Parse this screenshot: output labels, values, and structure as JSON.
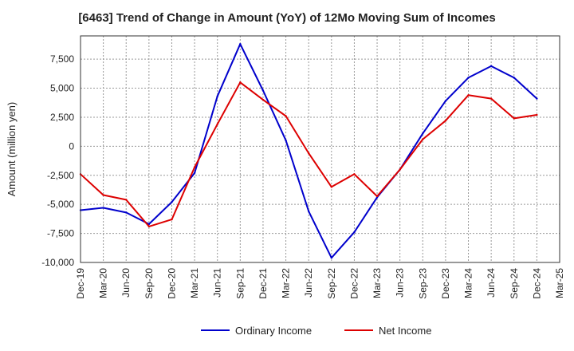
{
  "chart_data": {
    "type": "line",
    "title": "[6463]  Trend of Change in Amount (YoY) of 12Mo Moving Sum of Incomes",
    "xlabel": "",
    "ylabel": "Amount (million yen)",
    "ylim": [
      -10000,
      9500
    ],
    "yticks": [
      7500,
      5000,
      2500,
      0,
      -2500,
      -5000,
      -7500,
      -10000
    ],
    "ytick_labels": [
      "7,500",
      "5,000",
      "2,500",
      "0",
      "-2,500",
      "-5,000",
      "-7,500",
      "-10,000"
    ],
    "categories": [
      "Dec-19",
      "Mar-20",
      "Jun-20",
      "Sep-20",
      "Dec-20",
      "Mar-21",
      "Jun-21",
      "Sep-21",
      "Dec-21",
      "Mar-22",
      "Jun-22",
      "Sep-22",
      "Dec-22",
      "Mar-23",
      "Jun-23",
      "Sep-23",
      "Dec-23",
      "Mar-24",
      "Jun-24",
      "Sep-24",
      "Dec-24",
      "Mar-25"
    ],
    "grid": true,
    "legend_position": "bottom",
    "series": [
      {
        "name": "Ordinary Income",
        "color": "#0000cc",
        "values": [
          -5500,
          -5300,
          -5700,
          -6700,
          -4800,
          -2300,
          4300,
          8800,
          4800,
          500,
          -5600,
          -9600,
          -7400,
          -4400,
          -2000,
          1100,
          3900,
          5900,
          6900,
          5900,
          4100,
          null
        ]
      },
      {
        "name": "Net Income",
        "color": "#dd0000",
        "values": [
          -2400,
          -4200,
          -4600,
          -6900,
          -6300,
          -1800,
          1900,
          5500,
          4000,
          2600,
          -600,
          -3500,
          -2400,
          -4300,
          -2000,
          600,
          2200,
          4400,
          4100,
          2400,
          2700,
          null
        ]
      }
    ]
  }
}
